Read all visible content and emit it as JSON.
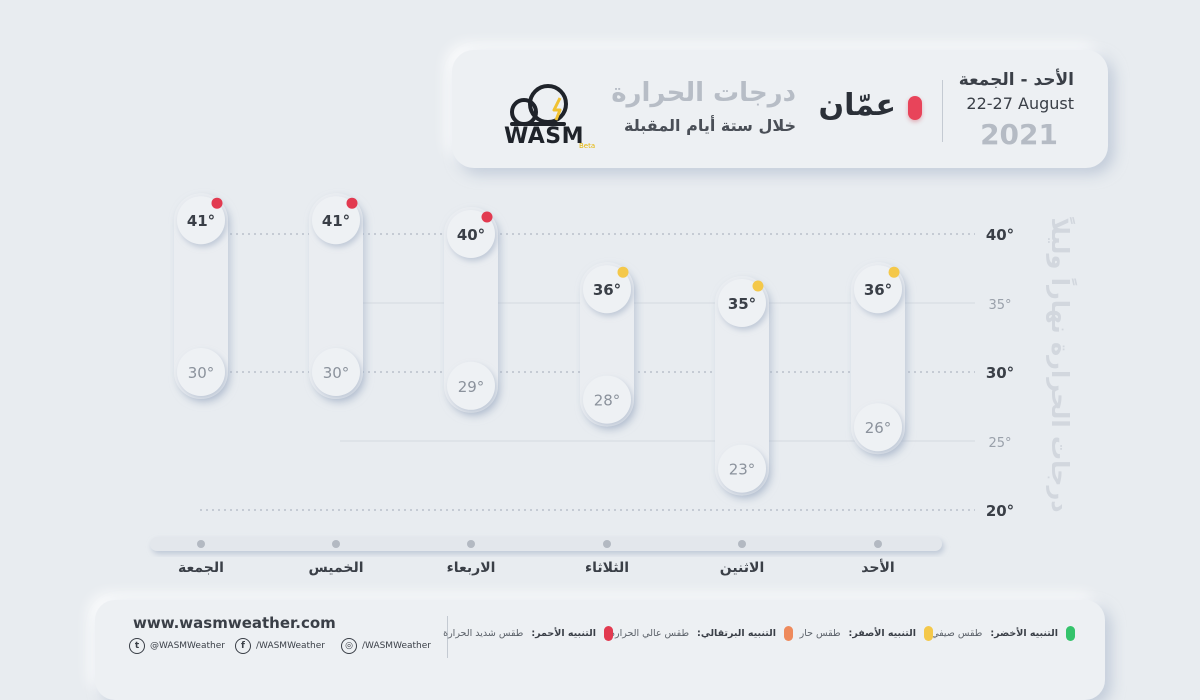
{
  "header": {
    "title": "درجات الحرارة",
    "subtitle": "خلال ستة أيام المقبلة",
    "city": "عمّان",
    "range_days": "الأحد - الجمعة",
    "range_dates": "22-27 August",
    "year": "2021",
    "brand": "WASM",
    "brand_tag": "Beta"
  },
  "chart_data": {
    "type": "range-bar",
    "ylabel": "درجات الحرارة نهاراً وليلاً",
    "ylim": [
      20,
      40
    ],
    "yticks": [
      {
        "value": 40,
        "label": "40°",
        "major": true
      },
      {
        "value": 35,
        "label": "35°",
        "major": false
      },
      {
        "value": 30,
        "label": "30°",
        "major": true
      },
      {
        "value": 25,
        "label": "25°",
        "major": false
      },
      {
        "value": 20,
        "label": "20°",
        "major": true
      }
    ],
    "categories": [
      "الجمعة",
      "الخميس",
      "الاربعاء",
      "الثلاثاء",
      "الاثنين",
      "الأحد"
    ],
    "highs": [
      41,
      41,
      40,
      36,
      35,
      36
    ],
    "lows": [
      30,
      30,
      29,
      28,
      23,
      26
    ],
    "alerts": [
      "red",
      "red",
      "red",
      "yellow",
      "yellow",
      "yellow"
    ]
  },
  "colors": {
    "red": "#e23a50",
    "orange": "#ee8a5c",
    "yellow": "#f4c84a",
    "green": "#34c36b"
  },
  "footer": {
    "website": "www.wasmweather.com",
    "socials": [
      {
        "icon": "twitter-icon",
        "handle": "@WASMWeather"
      },
      {
        "icon": "facebook-icon",
        "handle": "/WASMWeather"
      },
      {
        "icon": "instagram-icon",
        "handle": "/WASMWeather"
      }
    ],
    "legend": [
      {
        "color": "green",
        "title": "التنبيه الأخضر:",
        "desc": "طقس صيفي"
      },
      {
        "color": "yellow",
        "title": "التنبيه الأصفر:",
        "desc": "طقس حار"
      },
      {
        "color": "orange",
        "title": "التنبيه البرتقالي:",
        "desc": "طقس عالي الحرارة"
      },
      {
        "color": "red",
        "title": "التنبيه الأحمر:",
        "desc": "طقس شديد الحرارة"
      }
    ]
  }
}
